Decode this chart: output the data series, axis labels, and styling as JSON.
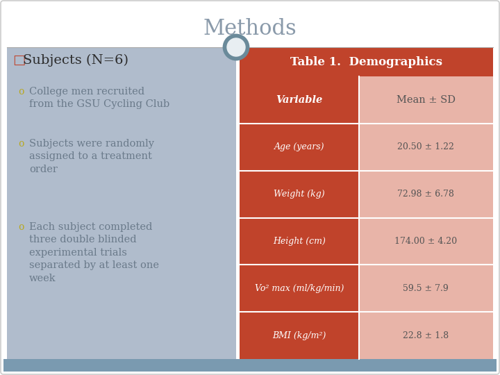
{
  "title": "Methods",
  "heading_square": "□",
  "heading_text": "Subjects (N=6)",
  "bullets": [
    "College men recruited\nfrom the GSU Cycling Club",
    "Subjects were randomly\nassigned to a treatment\norder",
    "Each subject completed\nthree double blinded\nexperimental trials\nseparated by at least one\nweek"
  ],
  "bullet_marker": "o",
  "table_title": "Table 1.  Demographics",
  "table_headers": [
    "Variable",
    "Mean ± SD"
  ],
  "table_rows": [
    [
      "Age (years)",
      "20.50 ± 1.22"
    ],
    [
      "Weight (kg)",
      "72.98 ± 6.78"
    ],
    [
      "Height (cm)",
      "174.00 ± 4.20"
    ],
    [
      "Vo² max (ml/kg/min)",
      "59.5 ± 7.9"
    ],
    [
      "BMI (kg/m²)",
      "22.8 ± 1.8"
    ]
  ],
  "bg_color": "#ffffff",
  "left_panel_bg": "#b0bccc",
  "right_panel_red": "#c0432b",
  "right_panel_salmon": "#e8b4a8",
  "title_color": "#8a9aaa",
  "heading_square_color": "#c0432b",
  "heading_text_color": "#2c2c2c",
  "bullet_color": "#6a7a8a",
  "bullet_marker_color": "#b8a820",
  "table_title_color": "#ffffff",
  "table_left_color": "#ffffff",
  "table_right_color": "#555555",
  "bottom_bar_color": "#7a9ab0",
  "divider_color": "#aaaaaa",
  "circle_outer_color": "#6a8a9a",
  "circle_inner_color": "#e8eef2",
  "slide_border_color": "#cccccc"
}
